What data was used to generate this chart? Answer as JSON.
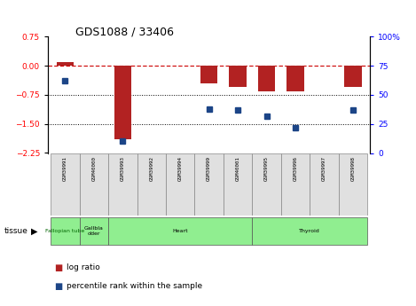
{
  "title": "GDS1088 / 33406",
  "samples": [
    "GSM39991",
    "GSM40000",
    "GSM39993",
    "GSM39992",
    "GSM39994",
    "GSM39999",
    "GSM40001",
    "GSM39995",
    "GSM39996",
    "GSM39997",
    "GSM39998"
  ],
  "log_ratio": [
    0.1,
    0.0,
    -1.9,
    0.0,
    0.0,
    -0.45,
    -0.55,
    -0.65,
    -0.65,
    0.0,
    -0.55
  ],
  "percentile_rank": [
    62,
    null,
    10,
    null,
    null,
    38,
    37,
    32,
    22,
    null,
    37
  ],
  "ylim_left": [
    -2.25,
    0.75
  ],
  "ylim_right": [
    0,
    100
  ],
  "yticks_left": [
    -2.25,
    -1.5,
    -0.75,
    0.0,
    0.75
  ],
  "yticks_right": [
    0,
    25,
    50,
    75,
    100
  ],
  "bar_color": "#B22222",
  "dot_color": "#1C4587",
  "dash_color": "#CC0000",
  "tissue_groups": [
    {
      "label": "Fallopian tube",
      "start": 0,
      "end": 1,
      "color": "#90EE90",
      "text_color": "#006400"
    },
    {
      "label": "Gallbla\ndder",
      "start": 1,
      "end": 2,
      "color": "#90EE90",
      "text_color": "#000000"
    },
    {
      "label": "Heart",
      "start": 2,
      "end": 7,
      "color": "#90EE90",
      "text_color": "#000000"
    },
    {
      "label": "Thyroid",
      "start": 7,
      "end": 11,
      "color": "#90EE90",
      "text_color": "#000000"
    }
  ],
  "legend_bar_label": "log ratio",
  "legend_dot_label": "percentile rank within the sample",
  "tissue_label": "tissue",
  "background_color": "#ffffff"
}
